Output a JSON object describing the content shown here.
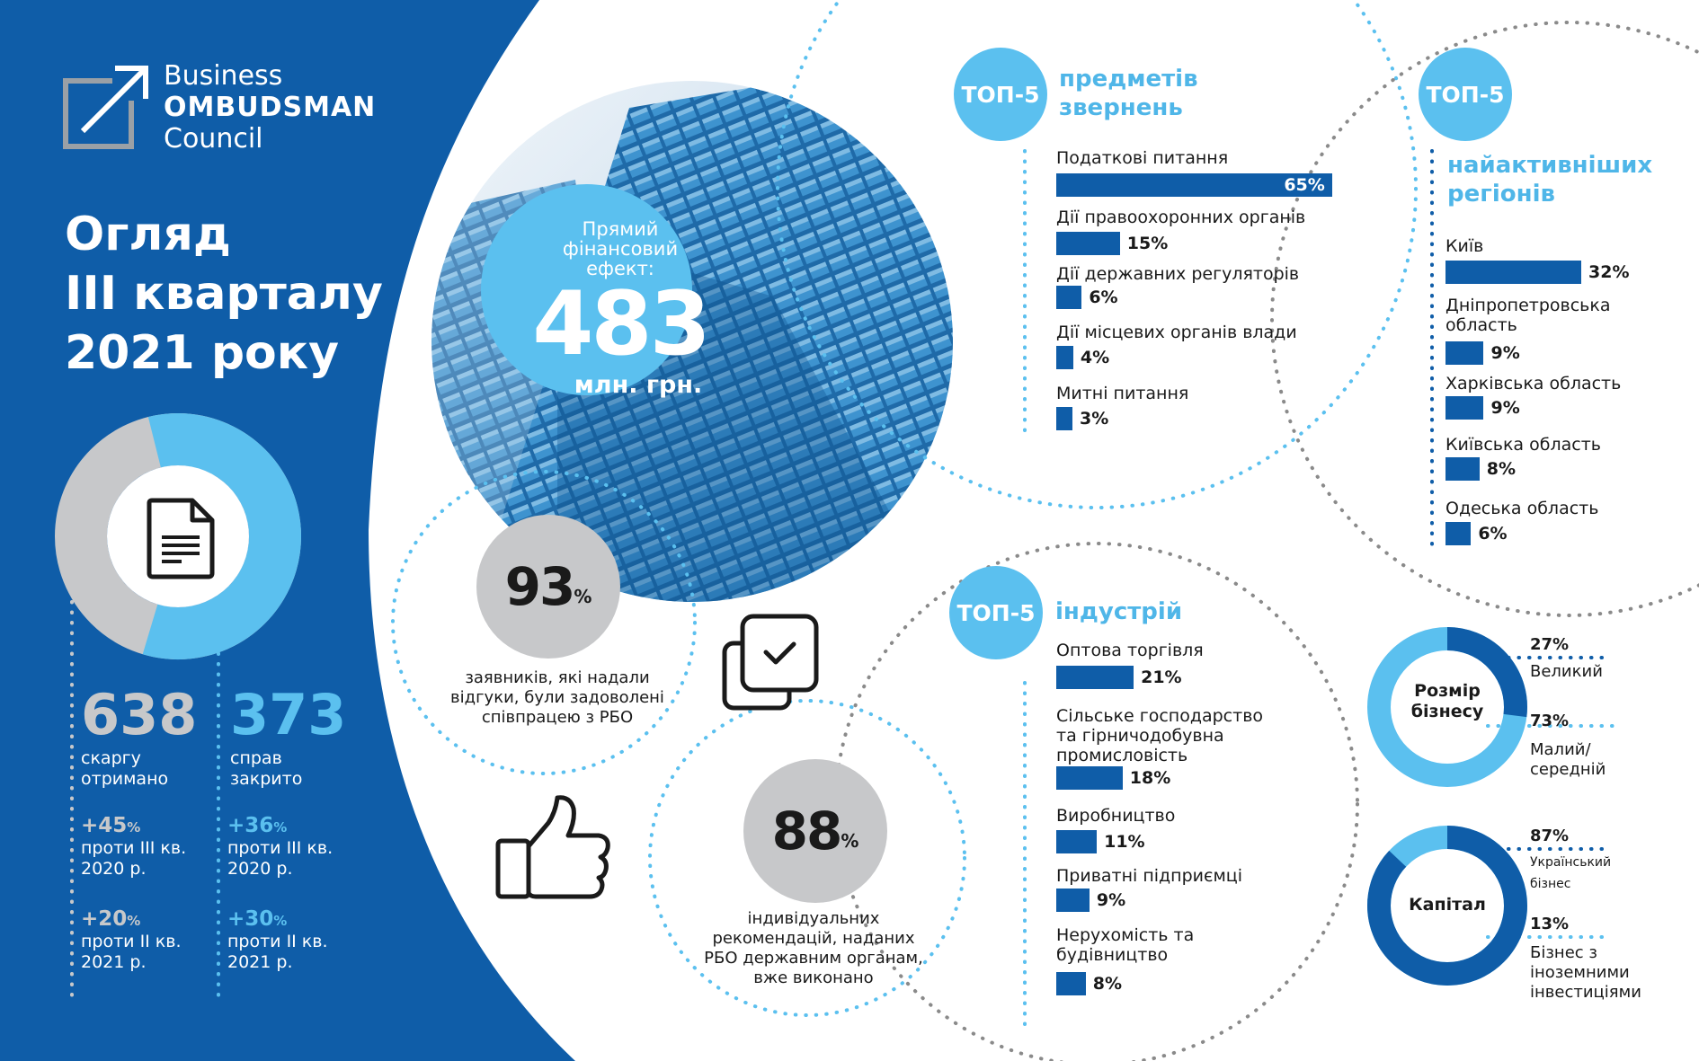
{
  "colors": {
    "navy": "#0f5da8",
    "light_blue": "#5bc0ef",
    "gray": "#c7c8ca",
    "white": "#ffffff"
  },
  "logo": {
    "line1": "Business",
    "line2": "OMBUDSMAN",
    "line3": "Council",
    "icon": "arrow-square-icon"
  },
  "title": {
    "line1": "Огляд",
    "line2": "III кварталу",
    "line3": "2021 року"
  },
  "complaints": {
    "icon": "document-icon",
    "received_value": "638",
    "received_label": "скаргу отримано",
    "closed_value": "373",
    "closed_label": "справ закрито",
    "received_q3_pct": "+45",
    "received_q3_label": "проти III кв. 2020 р.",
    "received_q2_pct": "+20",
    "received_q2_label": "проти II кв. 2021 р.",
    "closed_q3_pct": "+36",
    "closed_q3_label": "проти III кв. 2020 р.",
    "closed_q2_pct": "+30",
    "closed_q2_label": "проти II кв. 2021 р.",
    "pct_sign": "%",
    "share_closed": 0.585
  },
  "financial": {
    "caption": "Прямий фінансовий ефект:",
    "value": "483",
    "unit": "млн. грн."
  },
  "satisfied": {
    "value": "93",
    "pct_sign": "%",
    "caption": "заявників, які надали відгуки, були задоволені співпрацею з РБО",
    "icon": "checkbox-copies-icon"
  },
  "recommendations": {
    "value": "88",
    "pct_sign": "%",
    "caption": "індивідуальних рекомендацій, наданих РБО державним органам, вже виконано",
    "icon": "thumbs-up-icon"
  },
  "top5_label": "ТОП-5",
  "subjects": {
    "title": "предметів звернень",
    "items": [
      {
        "label": "Податкові питання",
        "pct": "65%",
        "value": 65
      },
      {
        "label": "Дії правоохоронних органів",
        "pct": "15%",
        "value": 15
      },
      {
        "label": "Дії державних регуляторів",
        "pct": "6%",
        "value": 6
      },
      {
        "label": "Дії місцевих органів влади",
        "pct": "4%",
        "value": 4
      },
      {
        "label": "Митні питання",
        "pct": "3%",
        "value": 3
      }
    ]
  },
  "regions": {
    "title": "найактивніших регіонів",
    "items": [
      {
        "label": "Київ",
        "pct": "32%",
        "value": 32
      },
      {
        "label": "Дніпропетровська область",
        "pct": "9%",
        "value": 9
      },
      {
        "label": "Харківська область",
        "pct": "9%",
        "value": 9
      },
      {
        "label": "Київська область",
        "pct": "8%",
        "value": 8
      },
      {
        "label": "Одеська область",
        "pct": "6%",
        "value": 6
      }
    ]
  },
  "industries": {
    "title": "індустрій",
    "items": [
      {
        "label": "Оптова торгівля",
        "pct": "21%",
        "value": 21
      },
      {
        "label": "Сільське господарство та гірничодобувна промисловість",
        "pct": "18%",
        "value": 18
      },
      {
        "label": "Виробництво",
        "pct": "11%",
        "value": 11
      },
      {
        "label": "Приватні підприємці",
        "pct": "9%",
        "value": 9
      },
      {
        "label": "Нерухомість та будівництво",
        "pct": "8%",
        "value": 8
      }
    ]
  },
  "business_size": {
    "title": "Розмір бізнесу",
    "large_pct": "27%",
    "large_label": "Великий",
    "small_pct": "73%",
    "small_label": "Малий/ середній",
    "large_value": 27,
    "small_value": 73
  },
  "capital": {
    "title": "Капітал",
    "ua_pct": "87%",
    "ua_label": "Український бізнес",
    "foreign_pct": "13%",
    "foreign_label": "Бізнес з іноземними інвестиціями",
    "ua_value": 87,
    "foreign_value": 13
  }
}
